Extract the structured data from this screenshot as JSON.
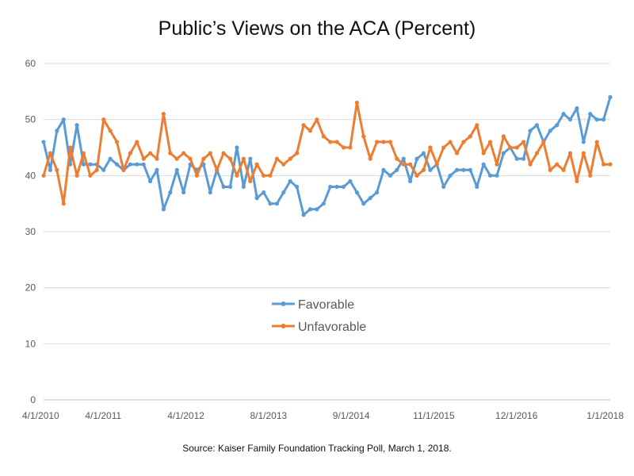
{
  "chart_data": {
    "type": "line",
    "title": "Public’s Views on the ACA (Percent)",
    "source": "Source: Kaiser Family Foundation Tracking Poll, March 1, 2018.",
    "xlabel": "",
    "ylabel": "",
    "ylim": [
      0,
      60
    ],
    "yticks": [
      0,
      10,
      20,
      30,
      40,
      50,
      60
    ],
    "x_tick_labels": [
      "4/1/2010",
      "4/1/2011",
      "4/1/2012",
      "8/1/2013",
      "9/1/2014",
      "11/1/2015",
      "12/1/2016",
      "1/1/2018"
    ],
    "grid": true,
    "legend_position": "center",
    "colors": {
      "Favorable": "#5b9bd5",
      "Unfavorable": "#ed7d31"
    },
    "series": [
      {
        "name": "Favorable",
        "values": [
          46,
          41,
          48,
          50,
          42,
          49,
          42,
          42,
          42,
          41,
          43,
          42,
          41,
          42,
          42,
          42,
          39,
          41,
          34,
          37,
          41,
          37,
          42,
          41,
          42,
          37,
          41,
          38,
          38,
          45,
          38,
          43,
          36,
          37,
          35,
          35,
          37,
          39,
          38,
          33,
          34,
          34,
          35,
          38,
          38,
          38,
          39,
          37,
          35,
          36,
          37,
          41,
          40,
          41,
          43,
          39,
          43,
          44,
          41,
          42,
          38,
          40,
          41,
          41,
          41,
          38,
          42,
          40,
          40,
          44,
          45,
          43,
          43,
          48,
          49,
          46,
          48,
          49,
          51,
          50,
          52,
          46,
          51,
          50,
          50,
          54
        ]
      },
      {
        "name": "Unfavorable",
        "values": [
          40,
          44,
          41,
          35,
          45,
          40,
          44,
          40,
          41,
          50,
          48,
          46,
          41,
          44,
          46,
          43,
          44,
          43,
          51,
          44,
          43,
          44,
          43,
          40,
          43,
          44,
          41,
          44,
          43,
          40,
          43,
          39,
          42,
          40,
          40,
          43,
          42,
          43,
          44,
          49,
          48,
          50,
          47,
          46,
          46,
          45,
          45,
          53,
          47,
          43,
          46,
          46,
          46,
          43,
          42,
          42,
          40,
          41,
          45,
          42,
          45,
          46,
          44,
          46,
          47,
          49,
          44,
          46,
          42,
          47,
          45,
          45,
          46,
          42,
          44,
          46,
          41,
          42,
          41,
          44,
          39,
          44,
          40,
          46,
          42,
          42
        ]
      }
    ]
  }
}
